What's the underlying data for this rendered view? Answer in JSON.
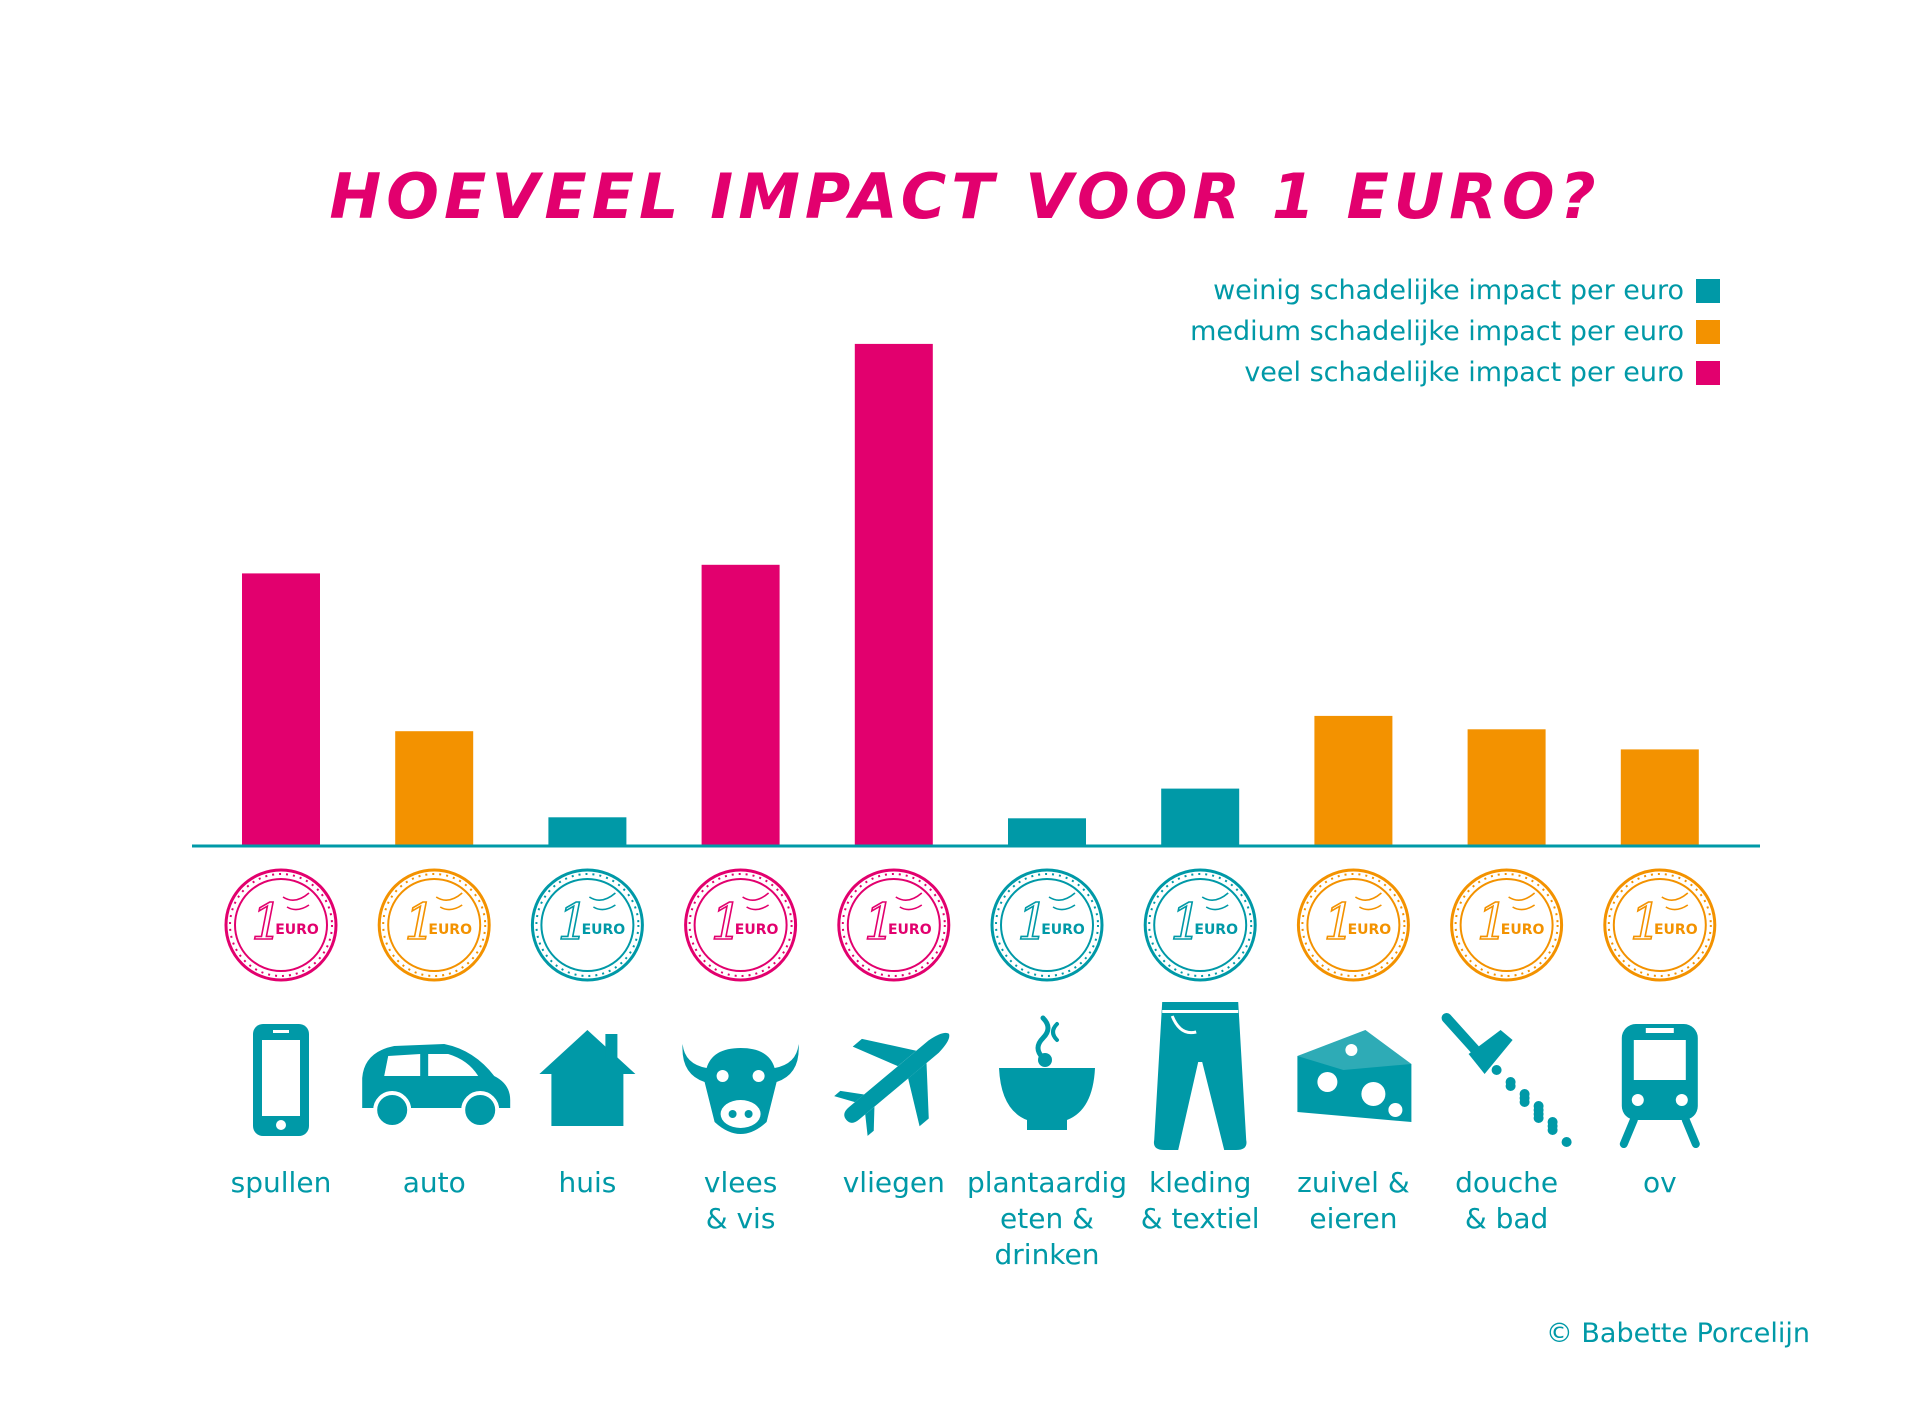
{
  "chart_data": {
    "type": "bar",
    "title": "HOEVEEL IMPACT VOOR 1 EURO?",
    "categories": [
      "spullen",
      "auto",
      "huis",
      "vlees & vis",
      "vliegen",
      "plantaardig eten & drinken",
      "kleding & textiel",
      "zuivel & eieren",
      "douche & bad",
      "ov"
    ],
    "category_lines": [
      [
        "spullen"
      ],
      [
        "auto"
      ],
      [
        "huis"
      ],
      [
        "vlees",
        "& vis"
      ],
      [
        "vliegen"
      ],
      [
        "plantaardig",
        "eten &",
        "drinken"
      ],
      [
        "kleding",
        "& textiel"
      ],
      [
        "zuivel &",
        "eieren"
      ],
      [
        "douche",
        "& bad"
      ],
      [
        "ov"
      ]
    ],
    "values": [
      28.5,
      12,
      3,
      29.4,
      52.5,
      2.9,
      6,
      13.6,
      12.2,
      10.1
    ],
    "impact_level": [
      "veel",
      "medium",
      "weinig",
      "veel",
      "veel",
      "weinig",
      "weinig",
      "medium",
      "medium",
      "medium"
    ],
    "icons": [
      "smartphone-icon",
      "car-icon",
      "house-icon",
      "cow-icon",
      "airplane-icon",
      "bowl-icon",
      "jeans-icon",
      "cheese-icon",
      "shower-icon",
      "train-icon"
    ],
    "coin_label": "1",
    "coin_text": "EURO",
    "legend": [
      {
        "key": "weinig",
        "label": "weinig schadelijke impact per euro",
        "color": "#0099a7"
      },
      {
        "key": "medium",
        "label": "medium schadelijke impact per euro",
        "color": "#f39200"
      },
      {
        "key": "veel",
        "label": "veel schadelijke impact per euro",
        "color": "#e2006e"
      }
    ],
    "legend_placement": "top-right",
    "ylim": [
      0,
      55
    ],
    "grid": false,
    "xlabel": "",
    "ylabel": ""
  },
  "colors": {
    "weinig": "#0099a7",
    "medium": "#f39200",
    "veel": "#e2006e",
    "text": "#0099a7",
    "title": "#e2006e",
    "axis": "#0099a7"
  },
  "footer": {
    "copyright": "© Babette Porcelijn"
  }
}
